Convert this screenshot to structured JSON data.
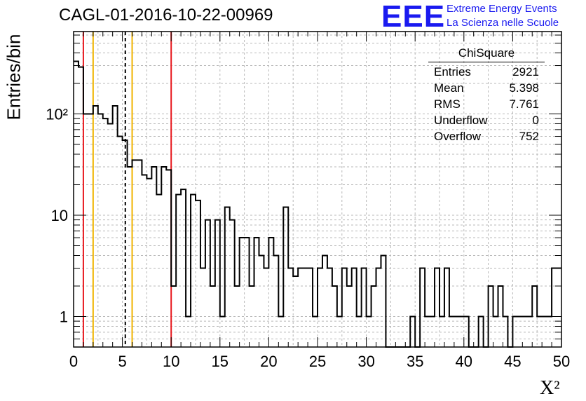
{
  "header": {
    "title": "CAGL-01-2016-10-22-00969",
    "logo": "EEE",
    "logo_line1": "Extreme Energy Events",
    "logo_line2": "La Scienza nelle Scuole"
  },
  "stats": {
    "name": "ChiSquare",
    "rows": [
      {
        "label": "Entries",
        "value": "2921"
      },
      {
        "label": "Mean",
        "value": "5.398"
      },
      {
        "label": "RMS",
        "value": "7.761"
      },
      {
        "label": "Underflow",
        "value": "0"
      },
      {
        "label": "Overflow",
        "value": "752"
      }
    ]
  },
  "chart_data": {
    "type": "histogram",
    "title": "CAGL-01-2016-10-22-00969",
    "xlabel": "X²",
    "ylabel": "Entries/bin",
    "xlim": [
      0,
      50
    ],
    "ylim": [
      0.5,
      650
    ],
    "yscale": "log",
    "grid": true,
    "bin_width": 0.5,
    "bin_starts": [
      0,
      0.5,
      1,
      1.5,
      2,
      2.5,
      3,
      3.5,
      4,
      4.5,
      5,
      5.5,
      6,
      6.5,
      7,
      7.5,
      8,
      8.5,
      9,
      9.5,
      10,
      10.5,
      11,
      11.5,
      12,
      12.5,
      13,
      13.5,
      14,
      14.5,
      15,
      15.5,
      16,
      16.5,
      17,
      17.5,
      18,
      18.5,
      19,
      19.5,
      20,
      20.5,
      21,
      21.5,
      22,
      22.5,
      23,
      23.5,
      24,
      24.5,
      25,
      25.5,
      26,
      26.5,
      27,
      27.5,
      28,
      28.5,
      29,
      29.5,
      30,
      30.5,
      31,
      31.5,
      32,
      32.5,
      33,
      33.5,
      34,
      34.5,
      35,
      35.5,
      36,
      36.5,
      37,
      37.5,
      38,
      38.5,
      39,
      39.5,
      40,
      40.5,
      41,
      41.5,
      42,
      42.5,
      43,
      43.5,
      44,
      44.5,
      45,
      45.5,
      46,
      46.5,
      47,
      47.5,
      48,
      48.5,
      49,
      49.5
    ],
    "counts": [
      330,
      290,
      100,
      100,
      120,
      100,
      90,
      80,
      120,
      60,
      55,
      30,
      35,
      35,
      25,
      23,
      30,
      16,
      30,
      28,
      2,
      16,
      18,
      1,
      16,
      14,
      3,
      9,
      2,
      9,
      1,
      12,
      9,
      2,
      6,
      6,
      2,
      6,
      4,
      3,
      6,
      4,
      1,
      12,
      3,
      2.5,
      3,
      3,
      3,
      1,
      3,
      4,
      3,
      2,
      1,
      3,
      2,
      3,
      1,
      3,
      1,
      2,
      3,
      4,
      0,
      0,
      0,
      0,
      0,
      1,
      0,
      3,
      1,
      1,
      3,
      1,
      3,
      1,
      1,
      1,
      1,
      0,
      0,
      1,
      0,
      2,
      1,
      2,
      1,
      0,
      1,
      1,
      1,
      1,
      2,
      1,
      1,
      1,
      3,
      3
    ],
    "xticks": [
      0,
      5,
      10,
      15,
      20,
      25,
      30,
      35,
      40,
      45,
      50
    ],
    "ytick_labels": [
      {
        "value": 1,
        "label": "1"
      },
      {
        "value": 10,
        "label": "10"
      },
      {
        "value": 100,
        "label": "10²"
      }
    ],
    "vlines": [
      {
        "x": 1,
        "color": "#e8191e",
        "style": "solid"
      },
      {
        "x": 2,
        "color": "#f0b400",
        "style": "solid"
      },
      {
        "x": 5.3,
        "color": "#000000",
        "style": "dashed"
      },
      {
        "x": 6,
        "color": "#f0b400",
        "style": "solid"
      },
      {
        "x": 10,
        "color": "#e8191e",
        "style": "solid"
      }
    ]
  }
}
